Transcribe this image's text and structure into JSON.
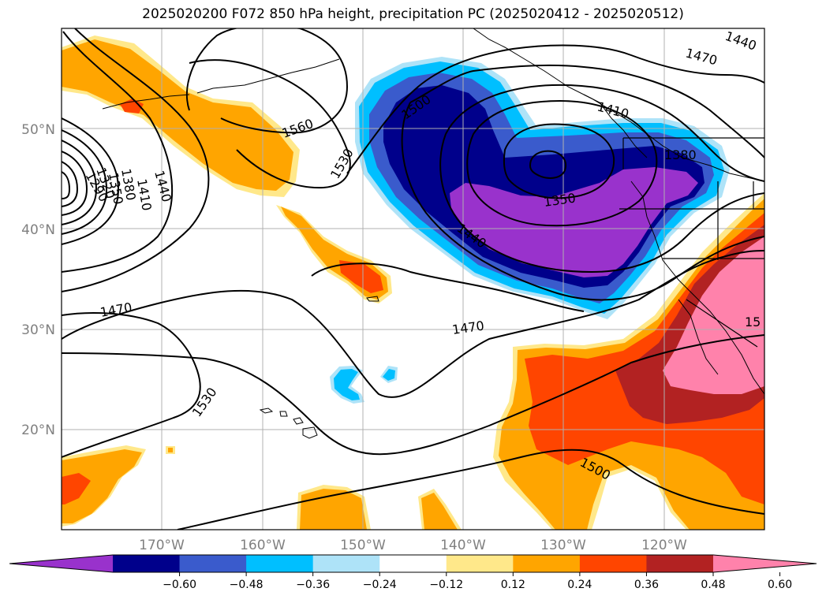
{
  "title": "2025020200 F072 850 hPa height, precipitation PC (2025020412 - 2025020512)",
  "map": {
    "lat_labels": [
      "50°N",
      "40°N",
      "30°N",
      "20°N"
    ],
    "lon_labels": [
      "170°W",
      "160°W",
      "150°W",
      "140°W",
      "130°W",
      "120°W"
    ],
    "contour_labels": [
      {
        "text": "1440",
        "where": "top-right corner"
      },
      {
        "text": "1470",
        "where": "top-right"
      },
      {
        "text": "1410",
        "where": "upper right"
      },
      {
        "text": "1380",
        "where": "right, near coast"
      },
      {
        "text": "1350",
        "where": "low center"
      },
      {
        "text": "1440",
        "where": "center"
      },
      {
        "text": "1500",
        "where": "upper center"
      },
      {
        "text": "1530",
        "where": "upper center-left"
      },
      {
        "text": "1560",
        "where": "upper left-center"
      },
      {
        "text": "1440",
        "where": "left low"
      },
      {
        "text": "1410",
        "where": "left low"
      },
      {
        "text": "1380",
        "where": "left low"
      },
      {
        "text": "1350",
        "where": "left low"
      },
      {
        "text": "1320",
        "where": "left low"
      },
      {
        "text": "1290",
        "where": "left low"
      },
      {
        "text": "1470",
        "where": "left"
      },
      {
        "text": "1470",
        "where": "center"
      },
      {
        "text": "1530",
        "where": "lower left"
      },
      {
        "text": "1500",
        "where": "lower right"
      },
      {
        "text": "15",
        "where": "right edge"
      }
    ],
    "colors": {
      "purple": "#9932cc",
      "navy": "#00008b",
      "royal": "#3a5bcc",
      "sky": "#00bfff",
      "light_blue": "#aee3f8",
      "white": "#ffffff",
      "light_yellow": "#ffe88a",
      "orange": "#ffa500",
      "red_orange": "#ff4500",
      "dark_red": "#b22222",
      "pink": "#ff82ab"
    }
  },
  "colorbar": {
    "ticks": [
      "−0.60",
      "−0.48",
      "−0.36",
      "−0.24",
      "−0.12",
      "0.12",
      "0.24",
      "0.36",
      "0.48",
      "0.60"
    ],
    "colors": [
      "#9932cc",
      "#00008b",
      "#3a5bcc",
      "#00bfff",
      "#aee3f8",
      "#ffffff",
      "#ffe88a",
      "#ffa500",
      "#ff4500",
      "#b22222",
      "#ff82ab"
    ]
  }
}
